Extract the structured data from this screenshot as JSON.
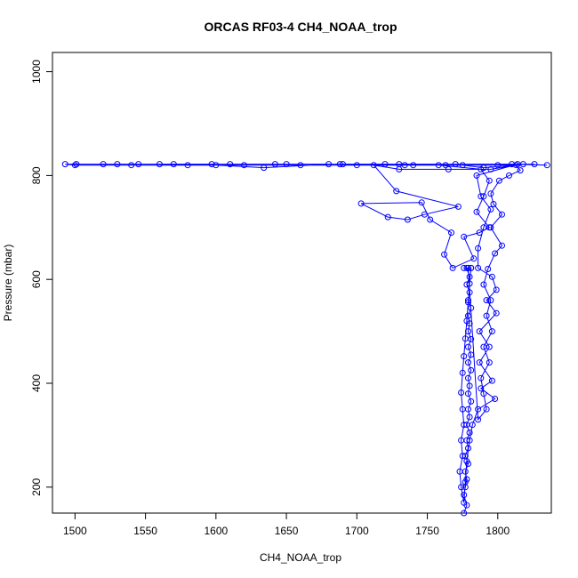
{
  "chart_data": {
    "type": "line",
    "title": "ORCAS RF03-4 CH4_NOAA_trop",
    "xlabel": "CH4_NOAA_trop",
    "ylabel": "Pressure (mbar)",
    "xlim": [
      1484,
      1838
    ],
    "ylim": [
      1037,
      150
    ],
    "y_reversed": true,
    "grid": false,
    "xticks": [
      1500,
      1550,
      1600,
      1650,
      1700,
      1750,
      1800
    ],
    "yticks": [
      200,
      400,
      600,
      800,
      1000
    ],
    "color": "#0000ff",
    "markers": "open-circle",
    "series": [
      {
        "points": [
          [
            1776,
            150
          ],
          [
            1778,
            165
          ],
          [
            1776,
            185
          ],
          [
            1777,
            200
          ],
          [
            1778,
            215
          ],
          [
            1777,
            230
          ],
          [
            1779,
            245
          ],
          [
            1777,
            260
          ],
          [
            1779,
            275
          ],
          [
            1778,
            290
          ],
          [
            1780,
            305
          ],
          [
            1778,
            320
          ],
          [
            1780,
            335
          ],
          [
            1779,
            350
          ],
          [
            1781,
            365
          ],
          [
            1779,
            380
          ],
          [
            1780,
            395
          ],
          [
            1779,
            410
          ],
          [
            1781,
            425
          ],
          [
            1779,
            440
          ],
          [
            1781,
            455
          ],
          [
            1779,
            470
          ],
          [
            1781,
            485
          ],
          [
            1779,
            500
          ],
          [
            1780,
            515
          ],
          [
            1779,
            530
          ],
          [
            1781,
            545
          ],
          [
            1779,
            560
          ],
          [
            1780,
            575
          ],
          [
            1778,
            590
          ],
          [
            1780,
            605
          ],
          [
            1778,
            622
          ],
          [
            1781,
            622
          ],
          [
            1779,
            622
          ],
          [
            1786,
            330
          ],
          [
            1792,
            350
          ],
          [
            1790,
            380
          ],
          [
            1788,
            410
          ],
          [
            1794,
            440
          ],
          [
            1790,
            470
          ],
          [
            1796,
            500
          ],
          [
            1792,
            530
          ],
          [
            1795,
            560
          ],
          [
            1790,
            590
          ],
          [
            1793,
            620
          ],
          [
            1798,
            650
          ],
          [
            1803,
            665
          ],
          [
            1795,
            700
          ],
          [
            1803,
            725
          ],
          [
            1797,
            745
          ],
          [
            1795,
            765
          ],
          [
            1801,
            790
          ],
          [
            1808,
            800
          ],
          [
            1816,
            810
          ],
          [
            1813,
            820
          ],
          [
            1790,
            815
          ],
          [
            1775,
            820
          ],
          [
            1740,
            820
          ],
          [
            1700,
            820
          ],
          [
            1660,
            820
          ],
          [
            1620,
            820
          ],
          [
            1580,
            820
          ],
          [
            1540,
            820
          ],
          [
            1500,
            820
          ],
          [
            1493,
            822
          ],
          [
            1530,
            822
          ],
          [
            1570,
            822
          ],
          [
            1610,
            822
          ],
          [
            1650,
            822
          ],
          [
            1690,
            822
          ],
          [
            1730,
            822
          ],
          [
            1770,
            822
          ],
          [
            1810,
            822
          ],
          [
            1835,
            820
          ],
          [
            1818,
            822
          ],
          [
            1795,
            812
          ],
          [
            1765,
            812
          ],
          [
            1730,
            812
          ],
          [
            1712,
            820
          ],
          [
            1728,
            770
          ],
          [
            1772,
            740
          ],
          [
            1748,
            725
          ],
          [
            1736,
            715
          ],
          [
            1722,
            720
          ],
          [
            1703,
            746
          ],
          [
            1746,
            748
          ],
          [
            1752,
            715
          ],
          [
            1767,
            690
          ],
          [
            1762,
            648
          ],
          [
            1768,
            622
          ],
          [
            1783,
            640
          ],
          [
            1776,
            682
          ],
          [
            1787,
            690
          ],
          [
            1794,
            700
          ],
          [
            1785,
            730
          ],
          [
            1790,
            760
          ],
          [
            1794,
            790
          ],
          [
            1788,
            812
          ],
          [
            1758,
            820
          ],
          [
            1720,
            822
          ],
          [
            1680,
            822
          ],
          [
            1634,
            815
          ],
          [
            1600,
            820
          ],
          [
            1560,
            822
          ],
          [
            1520,
            822
          ],
          [
            1501,
            822
          ],
          [
            1545,
            822
          ],
          [
            1597,
            822
          ],
          [
            1642,
            822
          ],
          [
            1688,
            822
          ],
          [
            1734,
            820
          ],
          [
            1763,
            820
          ],
          [
            1800,
            820
          ],
          [
            1826,
            822
          ],
          [
            1814,
            822
          ],
          [
            1785,
            800
          ],
          [
            1788,
            760
          ],
          [
            1795,
            735
          ],
          [
            1790,
            700
          ],
          [
            1786,
            660
          ],
          [
            1786,
            622
          ],
          [
            1796,
            605
          ],
          [
            1799,
            580
          ],
          [
            1792,
            560
          ],
          [
            1799,
            535
          ],
          [
            1787,
            500
          ],
          [
            1794,
            470
          ],
          [
            1787,
            440
          ],
          [
            1796,
            405
          ],
          [
            1788,
            390
          ],
          [
            1798,
            370
          ],
          [
            1786,
            350
          ],
          [
            1782,
            320
          ],
          [
            1780,
            290
          ],
          [
            1778,
            250
          ],
          [
            1777,
            210
          ],
          [
            1776,
            170
          ],
          [
            1774,
            200
          ],
          [
            1773,
            230
          ],
          [
            1775,
            260
          ],
          [
            1774,
            290
          ],
          [
            1776,
            320
          ],
          [
            1775,
            350
          ],
          [
            1774,
            382
          ],
          [
            1775,
            420
          ],
          [
            1776,
            452
          ],
          [
            1777,
            486
          ],
          [
            1778,
            520
          ],
          [
            1779,
            556
          ],
          [
            1780,
            592
          ],
          [
            1781,
            622
          ],
          [
            1776,
            622
          ]
        ]
      }
    ]
  }
}
